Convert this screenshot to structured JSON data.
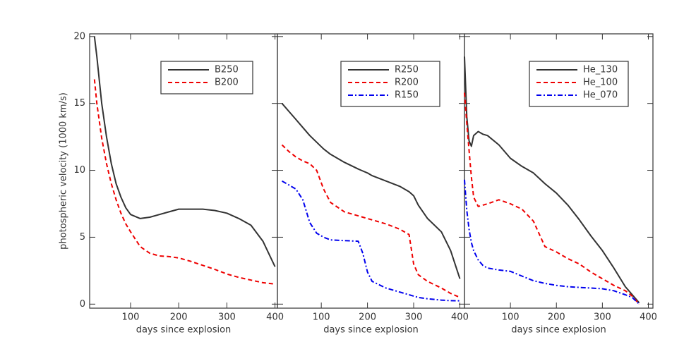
{
  "chart_data": [
    {
      "type": "line",
      "xlabel": "days since explosion",
      "ylabel": "photospheric velocity (1000 km/s)",
      "xlim": [
        15,
        405
      ],
      "xticks": [
        100,
        200,
        300,
        400
      ],
      "ylim": [
        -0.3,
        20.2
      ],
      "yticks": [
        0,
        5,
        10,
        15,
        20
      ],
      "legend": "upper right",
      "x": [
        25,
        30,
        40,
        50,
        60,
        70,
        80,
        90,
        100,
        120,
        140,
        160,
        180,
        200,
        225,
        250,
        275,
        300,
        325,
        350,
        375,
        400
      ],
      "series": [
        {
          "name": "B250",
          "color": "#333333",
          "dash": "solid",
          "values": [
            20,
            18.5,
            15,
            12.5,
            10.5,
            9,
            8,
            7.2,
            6.7,
            6.4,
            6.5,
            6.7,
            6.9,
            7.1,
            7.1,
            7.1,
            7.0,
            6.8,
            6.4,
            5.9,
            4.7,
            2.8
          ]
        },
        {
          "name": "B200",
          "color": "#ee0000",
          "dash": "dashed",
          "values": [
            16.8,
            15,
            12.4,
            10.5,
            9,
            7.8,
            6.8,
            6,
            5.4,
            4.3,
            3.8,
            3.6,
            3.55,
            3.45,
            3.2,
            2.9,
            2.6,
            2.25,
            2.0,
            1.8,
            1.6,
            1.5
          ]
        }
      ]
    },
    {
      "type": "line",
      "xlabel": "days since explosion",
      "xlim": [
        5,
        410
      ],
      "xticks": [
        100,
        200,
        300,
        400
      ],
      "ylim": [
        -0.3,
        20.2
      ],
      "legend": "upper right",
      "x": [
        15,
        30,
        45,
        60,
        75,
        90,
        105,
        120,
        150,
        180,
        190,
        200,
        210,
        240,
        270,
        290,
        300,
        310,
        330,
        360,
        380,
        400
      ],
      "series": [
        {
          "name": "R250",
          "color": "#333333",
          "dash": "solid",
          "values": [
            15,
            14.4,
            13.8,
            13.2,
            12.6,
            12.1,
            11.6,
            11.2,
            10.6,
            10.1,
            9.95,
            9.8,
            9.6,
            9.2,
            8.8,
            8.4,
            8.1,
            7.4,
            6.4,
            5.4,
            4.0,
            1.9
          ]
        },
        {
          "name": "R200",
          "color": "#ee0000",
          "dash": "dashed",
          "values": [
            11.9,
            11.4,
            11.0,
            10.7,
            10.5,
            10,
            8.6,
            7.6,
            6.9,
            6.6,
            6.5,
            6.4,
            6.3,
            6.0,
            5.6,
            5.2,
            3.0,
            2.2,
            1.7,
            1.2,
            0.8,
            0.5
          ]
        },
        {
          "name": "R150",
          "color": "#0000ee",
          "dash": "dashdot",
          "values": [
            9.2,
            8.9,
            8.6,
            7.8,
            6.1,
            5.3,
            5.0,
            4.8,
            4.75,
            4.7,
            3.8,
            2.4,
            1.7,
            1.2,
            0.9,
            0.7,
            0.6,
            0.5,
            0.4,
            0.3,
            0.26,
            0.25
          ]
        }
      ]
    },
    {
      "type": "line",
      "xlabel": "days since explosion",
      "xlim": [
        0,
        410
      ],
      "xticks": [
        100,
        200,
        300,
        400
      ],
      "ylim": [
        -0.3,
        20.2
      ],
      "legend": "upper right",
      "x": [
        0,
        5,
        10,
        15,
        20,
        30,
        40,
        50,
        75,
        100,
        125,
        150,
        175,
        200,
        225,
        250,
        275,
        300,
        325,
        350,
        365,
        380
      ],
      "series": [
        {
          "name": "He_130",
          "color": "#333333",
          "dash": "solid",
          "values": [
            18.5,
            14,
            12.2,
            11.8,
            12.6,
            12.9,
            12.7,
            12.6,
            11.9,
            10.9,
            10.3,
            9.8,
            9.0,
            8.3,
            7.4,
            6.3,
            5.1,
            4.0,
            2.7,
            1.3,
            0.7,
            0.1
          ]
        },
        {
          "name": "He_100",
          "color": "#ee0000",
          "dash": "dashed",
          "values": [
            15.8,
            13.5,
            11.5,
            9.5,
            8,
            7.3,
            7.4,
            7.5,
            7.8,
            7.5,
            7.1,
            6.2,
            4.3,
            3.9,
            3.4,
            3.0,
            2.4,
            1.9,
            1.4,
            1.0,
            0.6,
            0
          ]
        },
        {
          "name": "He_070",
          "color": "#0000ee",
          "dash": "dashdot",
          "values": [
            9.3,
            7.0,
            5.6,
            4.6,
            4.0,
            3.3,
            2.9,
            2.7,
            2.55,
            2.45,
            2.1,
            1.75,
            1.55,
            1.4,
            1.3,
            1.25,
            1.2,
            1.15,
            1.0,
            0.7,
            0.5,
            0
          ]
        }
      ]
    }
  ]
}
